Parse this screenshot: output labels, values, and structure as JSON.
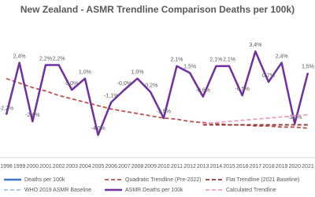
{
  "chart_data": {
    "type": "line",
    "title": "New Zealand - ASMR Trendline Comparison Deaths per 100k)",
    "categories": [
      "1998",
      "1999",
      "2000",
      "2001",
      "2002",
      "2003",
      "2004",
      "2005",
      "2006",
      "2007",
      "2008",
      "2009",
      "2010",
      "2011",
      "2012",
      "2013",
      "2014",
      "2015",
      "2016",
      "2017",
      "2018",
      "2019",
      "2020",
      "2021"
    ],
    "ylim": [
      -6,
      6
    ],
    "series": [
      {
        "name": "Deaths per 100k",
        "color": "#4472c4",
        "dash": false,
        "values": [
          null,
          null,
          null,
          null,
          null,
          null,
          null,
          null,
          null,
          null,
          null,
          null,
          null,
          null,
          null,
          null,
          null,
          null,
          null,
          null,
          null,
          null,
          null,
          null
        ]
      },
      {
        "name": "Quadratic Trendline (Pre-2022)",
        "color": "#c0504d",
        "dash": true,
        "values": [
          1.0,
          0.6,
          0.2,
          -0.1,
          -0.5,
          -0.8,
          -1.1,
          -1.4,
          -1.7,
          -1.9,
          -2.1,
          -2.3,
          -2.5,
          -2.6,
          -2.8,
          -2.9,
          -3.0,
          -3.1,
          -3.1,
          -3.2,
          -3.2,
          -3.3,
          -3.3,
          -3.4
        ]
      },
      {
        "name": "Flat Trendline (2021 Baseline)",
        "color": "#943634",
        "dash": true,
        "values": [
          null,
          null,
          null,
          null,
          null,
          null,
          null,
          null,
          null,
          null,
          null,
          null,
          null,
          null,
          null,
          -3.1,
          -3.1,
          -3.1,
          -3.1,
          -3.1,
          -3.1,
          -3.1,
          -3.1,
          -3.1
        ]
      },
      {
        "name": "WHO 2019 ASMR Baseline",
        "color": "#9dc3e6",
        "dash": true,
        "values": [
          null,
          null,
          null,
          null,
          null,
          null,
          null,
          null,
          null,
          null,
          null,
          null,
          null,
          null,
          null,
          null,
          null,
          null,
          null,
          null,
          null,
          null,
          null,
          null
        ]
      },
      {
        "name": "ASMR Deaths per 100k",
        "color": "#7030a0",
        "dash": false,
        "values": [
          -2.2,
          2.4,
          -2.8,
          2.2,
          2.2,
          0.0,
          1.0,
          -4.0,
          -1.1,
          -0.0,
          1.0,
          -0.2,
          -2.5,
          2.1,
          1.5,
          -0.6,
          2.1,
          2.1,
          -0.5,
          3.4,
          0.7,
          2.4,
          -3.0,
          1.5
        ],
        "value_labels": [
          "-2,2%",
          "2,4%",
          "-2,8%",
          "2,2%",
          "2,2%",
          "0,0%",
          "1,0%",
          "-4,0%",
          "-1,1%",
          "-0,0%",
          "1,0%",
          "-0,2%",
          "-2,5%",
          "2,1%",
          "1,5%",
          "-0,6%",
          "2,1%",
          "2,1%",
          "-0,5%",
          "3,4%",
          "0,7%",
          "2,4%",
          "-3,0%",
          "1,5%"
        ]
      },
      {
        "name": "Calculated Trendline",
        "color": "#e6a0c4",
        "dash": true,
        "values": [
          null,
          null,
          null,
          null,
          null,
          null,
          null,
          null,
          null,
          null,
          null,
          null,
          null,
          null,
          null,
          -3.0,
          -2.9,
          -2.8,
          -2.7,
          -2.6,
          -2.5,
          -2.4,
          -2.3,
          -2.2
        ]
      }
    ]
  }
}
